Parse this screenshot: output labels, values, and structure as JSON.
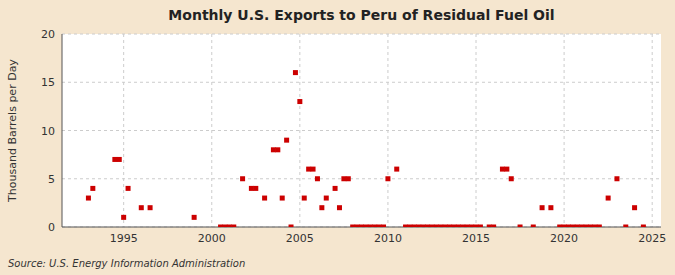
{
  "chart_data": {
    "type": "scatter",
    "title": "Monthly U.S. Exports to Peru of Residual Fuel Oil",
    "ylabel": "Thousand Barrels per Day",
    "source": "Source: U.S. Energy Information Administration",
    "color": "#cc0000",
    "marker": "square",
    "grid": true,
    "xlim": [
      1991.5,
      2025.5
    ],
    "xticks": [
      1995,
      2000,
      2005,
      2010,
      2015,
      2020,
      2025
    ],
    "ylim": [
      0,
      20
    ],
    "yticks": [
      0,
      5,
      10,
      15,
      20
    ],
    "x": [
      1993.0,
      1993.25,
      1994.5,
      1994.75,
      1995.0,
      1995.25,
      1996.0,
      1996.5,
      1999.0,
      2000.5,
      2000.75,
      2001.0,
      2001.25,
      2001.75,
      2002.25,
      2002.5,
      2003.0,
      2003.5,
      2003.75,
      2004.0,
      2004.25,
      2004.5,
      2004.75,
      2005.0,
      2005.25,
      2005.5,
      2005.75,
      2006.0,
      2006.25,
      2006.5,
      2007.0,
      2007.25,
      2007.5,
      2007.75,
      2008.0,
      2008.25,
      2008.5,
      2008.75,
      2009.0,
      2009.25,
      2009.5,
      2009.75,
      2010.0,
      2010.5,
      2011.0,
      2011.25,
      2011.5,
      2011.75,
      2012.0,
      2012.25,
      2012.5,
      2012.75,
      2013.0,
      2013.25,
      2013.5,
      2013.75,
      2014.0,
      2014.25,
      2014.5,
      2014.75,
      2015.0,
      2015.25,
      2015.75,
      2016.0,
      2016.5,
      2016.75,
      2017.0,
      2017.5,
      2018.25,
      2018.75,
      2019.25,
      2019.75,
      2020.0,
      2020.25,
      2020.5,
      2020.75,
      2021.0,
      2021.25,
      2021.5,
      2021.75,
      2022.0,
      2022.5,
      2023.0,
      2023.5,
      2024.0,
      2024.5
    ],
    "values": [
      3.0,
      4.0,
      7.0,
      7.0,
      1.0,
      4.0,
      2.0,
      2.0,
      1.0,
      0.0,
      0.0,
      0.0,
      0.0,
      5.0,
      4.0,
      4.0,
      3.0,
      8.0,
      8.0,
      3.0,
      9.0,
      0.0,
      16.0,
      13.0,
      3.0,
      6.0,
      6.0,
      5.0,
      2.0,
      3.0,
      4.0,
      2.0,
      5.0,
      5.0,
      0.0,
      0.0,
      0.0,
      0.0,
      0.0,
      0.0,
      0.0,
      0.0,
      5.0,
      6.0,
      0.0,
      0.0,
      0.0,
      0.0,
      0.0,
      0.0,
      0.0,
      0.0,
      0.0,
      0.0,
      0.0,
      0.0,
      0.0,
      0.0,
      0.0,
      0.0,
      0.0,
      0.0,
      0.0,
      0.0,
      6.0,
      6.0,
      5.0,
      0.0,
      0.0,
      2.0,
      2.0,
      0.0,
      0.0,
      0.0,
      0.0,
      0.0,
      0.0,
      0.0,
      0.0,
      0.0,
      0.0,
      3.0,
      5.0,
      0.0,
      2.0,
      0.0
    ]
  }
}
